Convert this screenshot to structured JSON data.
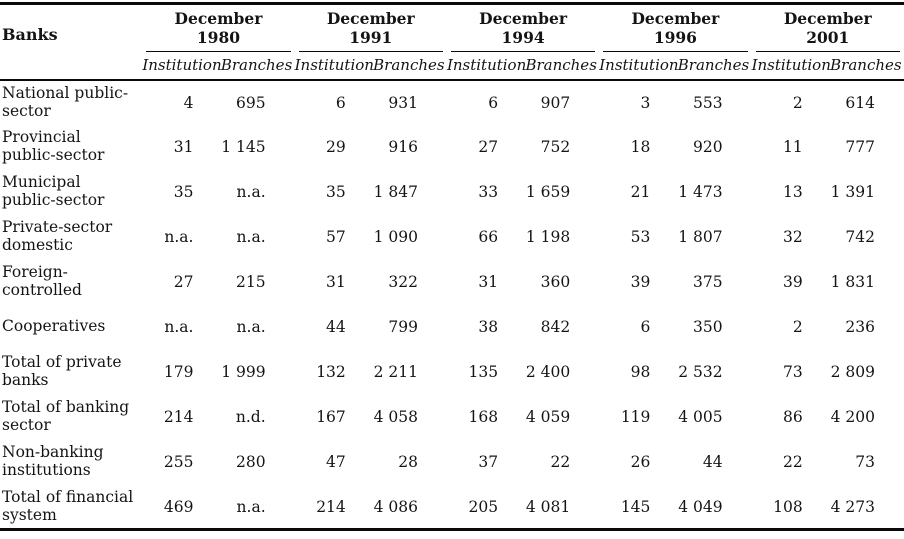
{
  "table": {
    "corner_label": "Banks",
    "groups": [
      {
        "line1": "December",
        "line2": "1980"
      },
      {
        "line1": "December",
        "line2": "1991"
      },
      {
        "line1": "December",
        "line2": "1994"
      },
      {
        "line1": "December",
        "line2": "1996"
      },
      {
        "line1": "December",
        "line2": "2001"
      }
    ],
    "subheaders": [
      "Institution",
      "Branches"
    ],
    "rows": [
      {
        "label": "National public-sector",
        "values": [
          "4",
          "695",
          "6",
          "931",
          "6",
          "907",
          "3",
          "553",
          "2",
          "614"
        ]
      },
      {
        "label": "Provincial public-sector",
        "values": [
          "31",
          "1 145",
          "29",
          "916",
          "27",
          "752",
          "18",
          "920",
          "11",
          "777"
        ]
      },
      {
        "label": "Municipal public-sector",
        "values": [
          "35",
          "n.a.",
          "35",
          "1 847",
          "33",
          "1 659",
          "21",
          "1 473",
          "13",
          "1 391"
        ]
      },
      {
        "label": "Private-sector domestic",
        "values": [
          "n.a.",
          "n.a.",
          "57",
          "1 090",
          "66",
          "1 198",
          "53",
          "1 807",
          "32",
          "742"
        ]
      },
      {
        "label": "Foreign-controlled",
        "values": [
          "27",
          "215",
          "31",
          "322",
          "31",
          "360",
          "39",
          "375",
          "39",
          "1 831"
        ]
      },
      {
        "label": "Cooperatives",
        "values": [
          "n.a.",
          "n.a.",
          "44",
          "799",
          "38",
          "842",
          "6",
          "350",
          "2",
          "236"
        ]
      },
      {
        "label": "Total of private banks",
        "values": [
          "179",
          "1 999",
          "132",
          "2 211",
          "135",
          "2 400",
          "98",
          "2 532",
          "73",
          "2 809"
        ]
      },
      {
        "label": "Total of banking sector",
        "values": [
          "214",
          "n.d.",
          "167",
          "4 058",
          "168",
          "4 059",
          "119",
          "4 005",
          "86",
          "4 200"
        ]
      },
      {
        "label": "Non-banking institutions",
        "values": [
          "255",
          "280",
          "47",
          "28",
          "37",
          "22",
          "26",
          "44",
          "22",
          "73"
        ]
      },
      {
        "label": "Total of financial system",
        "values": [
          "469",
          "n.a.",
          "214",
          "4 086",
          "205",
          "4 081",
          "145",
          "4 049",
          "108",
          "4 273"
        ]
      }
    ]
  }
}
